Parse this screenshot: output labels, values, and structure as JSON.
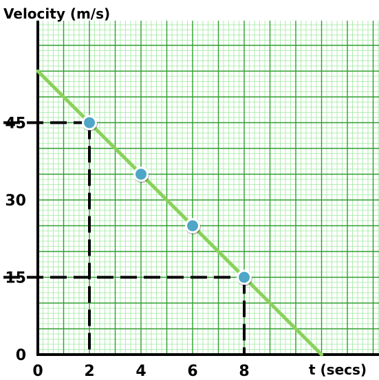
{
  "chart_data": {
    "type": "line",
    "ylabel": "Velocity (m/s)",
    "xlabel": "t (secs)",
    "x_ticks": [
      "0",
      "2",
      "4",
      "6",
      "8"
    ],
    "y_ticks": [
      "0",
      "15",
      "30",
      "45"
    ],
    "xlim": [
      0,
      13.3
    ],
    "ylim": [
      0,
      62
    ],
    "grid": true,
    "colors": {
      "background": "#ffffff",
      "minor_grid": "#9de89d",
      "major_grid": "#2e9e2e",
      "line": "#8ad15a",
      "marker_fill": "#4fa6c6",
      "marker_border": "#ffffff",
      "guide": "#000000",
      "axis": "#000000"
    },
    "series": [
      {
        "line": {
          "x": [
            0,
            11
          ],
          "y": [
            55,
            0
          ]
        },
        "points": [
          {
            "x": 2,
            "y": 45
          },
          {
            "x": 4,
            "y": 35
          },
          {
            "x": 6,
            "y": 25
          },
          {
            "x": 8,
            "y": 15
          }
        ]
      }
    ],
    "guides": [
      {
        "x": 2,
        "y": 45
      },
      {
        "x": 8,
        "y": 15
      }
    ]
  }
}
